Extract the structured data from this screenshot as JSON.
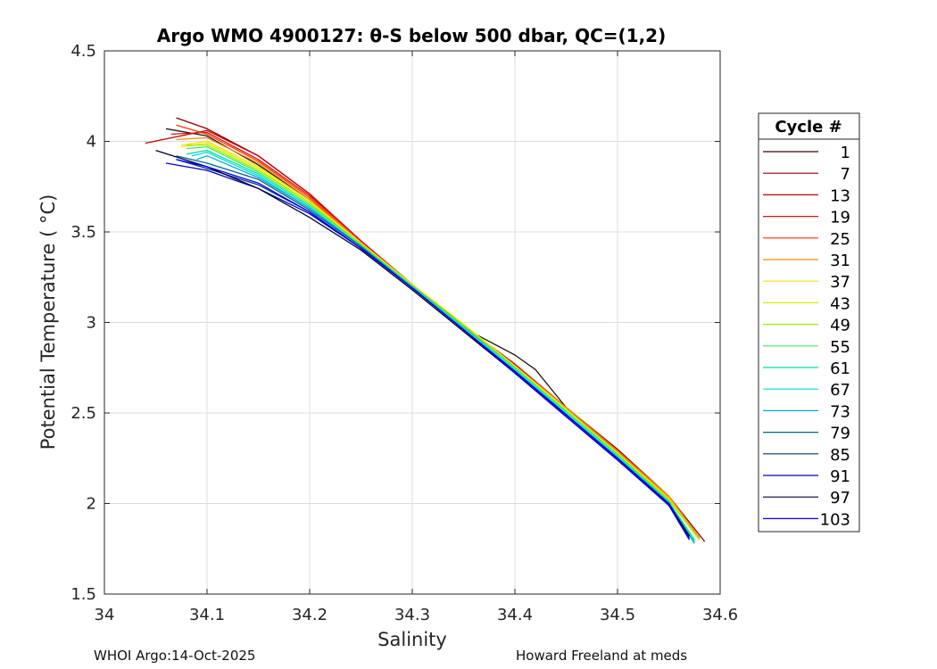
{
  "chart_data": {
    "type": "line",
    "title": "Argo WMO 4900127: θ-S below 500 dbar,  QC=(1,2)",
    "xlabel": "Salinity",
    "ylabel": "Potential Temperature ( °C)",
    "xlim": [
      34,
      34.6
    ],
    "ylim": [
      1.5,
      4.5
    ],
    "xticks": [
      "34",
      "34.1",
      "34.2",
      "34.3",
      "34.4",
      "34.5",
      "34.6"
    ],
    "yticks": [
      "1.5",
      "2",
      "2.5",
      "3",
      "3.5",
      "4",
      "4.5"
    ],
    "grid": true,
    "legend": {
      "title": "Cycle #",
      "placement": "outside-right",
      "entries": [
        {
          "label": "1",
          "color": "#3a0000"
        },
        {
          "label": "7",
          "color": "#8b0000"
        },
        {
          "label": "13",
          "color": "#c40000"
        },
        {
          "label": "19",
          "color": "#e01010"
        },
        {
          "label": "25",
          "color": "#ff3300"
        },
        {
          "label": "31",
          "color": "#ff8800"
        },
        {
          "label": "37",
          "color": "#ffdd00"
        },
        {
          "label": "43",
          "color": "#ddee00"
        },
        {
          "label": "49",
          "color": "#99ee00"
        },
        {
          "label": "55",
          "color": "#44ee44"
        },
        {
          "label": "61",
          "color": "#00ddaa"
        },
        {
          "label": "67",
          "color": "#00dddd"
        },
        {
          "label": "73",
          "color": "#00aadd"
        },
        {
          "label": "79",
          "color": "#006688"
        },
        {
          "label": "85",
          "color": "#003388"
        },
        {
          "label": "91",
          "color": "#0000bb"
        },
        {
          "label": "97",
          "color": "#000033"
        },
        {
          "label": "103",
          "color": "#0000ff"
        }
      ]
    },
    "series": [
      {
        "name": "1",
        "color": "#1a1a1a",
        "x": [
          34.06,
          34.1,
          34.15,
          34.2,
          34.25,
          34.3,
          34.35,
          34.4,
          34.42,
          34.45,
          34.5,
          34.55,
          34.58
        ],
        "y": [
          4.07,
          4.03,
          3.87,
          3.68,
          3.44,
          3.19,
          2.97,
          2.82,
          2.74,
          2.53,
          2.28,
          2.02,
          1.8
        ]
      },
      {
        "name": "7",
        "color": "#8b0000",
        "x": [
          34.07,
          34.1,
          34.15,
          34.2,
          34.25,
          34.3,
          34.35,
          34.4,
          34.45,
          34.5,
          34.55,
          34.585
        ],
        "y": [
          4.13,
          4.07,
          3.92,
          3.71,
          3.45,
          3.21,
          2.98,
          2.77,
          2.53,
          2.3,
          2.04,
          1.79
        ]
      },
      {
        "name": "13",
        "color": "#c40000",
        "x": [
          34.04,
          34.1,
          34.15,
          34.2,
          34.25,
          34.3,
          34.35,
          34.4,
          34.45,
          34.5,
          34.55,
          34.58
        ],
        "y": [
          3.99,
          4.06,
          3.92,
          3.71,
          3.45,
          3.2,
          2.97,
          2.76,
          2.53,
          2.29,
          2.03,
          1.8
        ]
      },
      {
        "name": "19",
        "color": "#e01010",
        "x": [
          34.065,
          34.1,
          34.15,
          34.2,
          34.25,
          34.3,
          34.35,
          34.4,
          34.45,
          34.5,
          34.55,
          34.58
        ],
        "y": [
          4.04,
          4.05,
          3.9,
          3.7,
          3.45,
          3.21,
          2.98,
          2.77,
          2.53,
          2.29,
          2.03,
          1.8
        ]
      },
      {
        "name": "25",
        "color": "#ff3300",
        "x": [
          34.07,
          34.1,
          34.15,
          34.2,
          34.25,
          34.3,
          34.35,
          34.4,
          34.45,
          34.5,
          34.55,
          34.58
        ],
        "y": [
          4.09,
          4.04,
          3.89,
          3.69,
          3.44,
          3.2,
          2.98,
          2.76,
          2.53,
          2.29,
          2.03,
          1.81
        ]
      },
      {
        "name": "31",
        "color": "#ff8800",
        "x": [
          34.07,
          34.1,
          34.15,
          34.2,
          34.25,
          34.3,
          34.35,
          34.4,
          34.45,
          34.5,
          34.55,
          34.58
        ],
        "y": [
          4.01,
          4.02,
          3.88,
          3.68,
          3.44,
          3.2,
          2.98,
          2.76,
          2.53,
          2.29,
          2.04,
          1.81
        ]
      },
      {
        "name": "37",
        "color": "#ffdd00",
        "x": [
          34.075,
          34.1,
          34.15,
          34.2,
          34.25,
          34.3,
          34.35,
          34.4,
          34.45,
          34.5,
          34.55,
          34.58
        ],
        "y": [
          3.98,
          4.0,
          3.86,
          3.67,
          3.44,
          3.21,
          2.99,
          2.76,
          2.52,
          2.28,
          2.03,
          1.8
        ]
      },
      {
        "name": "43",
        "color": "#ddee00",
        "x": [
          34.075,
          34.1,
          34.15,
          34.2,
          34.25,
          34.3,
          34.35,
          34.4,
          34.45,
          34.5,
          34.55,
          34.58
        ],
        "y": [
          3.97,
          3.99,
          3.85,
          3.66,
          3.43,
          3.21,
          2.99,
          2.76,
          2.52,
          2.28,
          2.02,
          1.8
        ]
      },
      {
        "name": "49",
        "color": "#99ee00",
        "x": [
          34.08,
          34.1,
          34.15,
          34.2,
          34.25,
          34.3,
          34.35,
          34.4,
          34.45,
          34.5,
          34.55,
          34.58
        ],
        "y": [
          3.98,
          3.98,
          3.84,
          3.66,
          3.43,
          3.2,
          2.98,
          2.75,
          2.51,
          2.27,
          2.02,
          1.8
        ]
      },
      {
        "name": "55",
        "color": "#44ee44",
        "x": [
          34.08,
          34.1,
          34.15,
          34.2,
          34.25,
          34.3,
          34.35,
          34.4,
          34.45,
          34.5,
          34.55,
          34.575
        ],
        "y": [
          3.96,
          3.97,
          3.83,
          3.65,
          3.43,
          3.2,
          2.98,
          2.75,
          2.51,
          2.27,
          2.01,
          1.8
        ]
      },
      {
        "name": "61",
        "color": "#00ddaa",
        "x": [
          34.08,
          34.1,
          34.15,
          34.2,
          34.25,
          34.3,
          34.35,
          34.4,
          34.45,
          34.5,
          34.55,
          34.575
        ],
        "y": [
          3.93,
          3.95,
          3.82,
          3.64,
          3.42,
          3.2,
          2.97,
          2.74,
          2.5,
          2.26,
          2.01,
          1.79
        ]
      },
      {
        "name": "67",
        "color": "#00dddd",
        "x": [
          34.085,
          34.1,
          34.15,
          34.2,
          34.25,
          34.3,
          34.35,
          34.4,
          34.45,
          34.5,
          34.55,
          34.575
        ],
        "y": [
          3.92,
          3.94,
          3.81,
          3.63,
          3.42,
          3.19,
          2.97,
          2.74,
          2.5,
          2.26,
          2.0,
          1.78
        ]
      },
      {
        "name": "73",
        "color": "#00aadd",
        "x": [
          34.09,
          34.1,
          34.15,
          34.2,
          34.25,
          34.3,
          34.35,
          34.4,
          34.45,
          34.5,
          34.55,
          34.575
        ],
        "y": [
          3.9,
          3.92,
          3.8,
          3.63,
          3.42,
          3.19,
          2.96,
          2.73,
          2.49,
          2.25,
          2.0,
          1.78
        ]
      },
      {
        "name": "79",
        "color": "#006688",
        "x": [
          34.07,
          34.1,
          34.15,
          34.2,
          34.25,
          34.3,
          34.35,
          34.4,
          34.45,
          34.5,
          34.55,
          34.57
        ],
        "y": [
          3.92,
          3.88,
          3.79,
          3.62,
          3.42,
          3.19,
          2.96,
          2.73,
          2.49,
          2.25,
          1.99,
          1.8
        ]
      },
      {
        "name": "85",
        "color": "#003388",
        "x": [
          34.07,
          34.1,
          34.15,
          34.2,
          34.25,
          34.3,
          34.35,
          34.4,
          34.45,
          34.5,
          34.55,
          34.57
        ],
        "y": [
          3.9,
          3.85,
          3.76,
          3.61,
          3.41,
          3.19,
          2.96,
          2.72,
          2.49,
          2.25,
          2.0,
          1.81
        ]
      },
      {
        "name": "91",
        "color": "#0000bb",
        "x": [
          34.06,
          34.1,
          34.15,
          34.2,
          34.25,
          34.3,
          34.35,
          34.4,
          34.45,
          34.5,
          34.55,
          34.57
        ],
        "y": [
          3.88,
          3.84,
          3.74,
          3.6,
          3.41,
          3.19,
          2.96,
          2.73,
          2.49,
          2.25,
          2.0,
          1.82
        ]
      },
      {
        "name": "97",
        "color": "#000033",
        "x": [
          34.05,
          34.1,
          34.15,
          34.2,
          34.25,
          34.3,
          34.35,
          34.4,
          34.45,
          34.5,
          34.55,
          34.57
        ],
        "y": [
          3.95,
          3.86,
          3.74,
          3.58,
          3.4,
          3.18,
          2.95,
          2.72,
          2.48,
          2.24,
          1.99,
          1.82
        ]
      },
      {
        "name": "103",
        "color": "#0000ff",
        "x": [
          34.07,
          34.1,
          34.15,
          34.2,
          34.25,
          34.3,
          34.35,
          34.4,
          34.45,
          34.5,
          34.55,
          34.57
        ],
        "y": [
          3.9,
          3.86,
          3.77,
          3.61,
          3.41,
          3.19,
          2.96,
          2.72,
          2.48,
          2.24,
          1.99,
          1.8
        ]
      }
    ]
  },
  "footer": {
    "left": "WHOI Argo:14-Oct-2025",
    "right": "Howard Freeland at meds"
  }
}
